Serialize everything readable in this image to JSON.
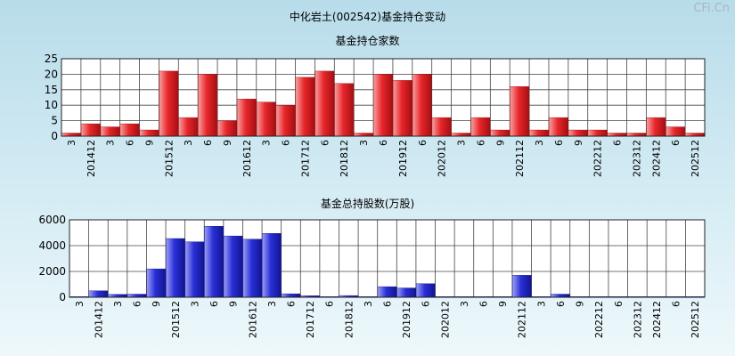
{
  "page": {
    "title": "中化岩土(002542)基金持仓变动",
    "watermark": "CFi.Cn"
  },
  "chart_data": [
    {
      "type": "bar",
      "title": "基金持仓家数",
      "color": "#e8262b",
      "ylim": [
        0,
        25
      ],
      "yticks": [
        0,
        5,
        10,
        15,
        20,
        25
      ],
      "xlabels": [
        "3",
        "201412",
        "3",
        "6",
        "9",
        "201512",
        "3",
        "6",
        "9",
        "201612",
        "3",
        "6",
        "201712",
        "6",
        "201812",
        "3",
        "6",
        "201912",
        "6",
        "202012",
        "3",
        "6",
        "9",
        "202112",
        "3",
        "6",
        "9",
        "202212",
        "6",
        "202312",
        "202412",
        "6",
        "202512"
      ],
      "values": [
        1,
        4,
        3,
        4,
        2,
        21,
        6,
        20,
        5,
        12,
        11,
        10,
        19,
        21,
        17,
        1,
        20,
        18,
        20,
        6,
        1,
        6,
        2,
        16,
        2,
        6,
        2,
        2,
        1,
        1,
        6,
        3,
        1
      ]
    },
    {
      "type": "bar",
      "title": "基金总持股数(万股)",
      "color": "#2a2fd8",
      "ylim": [
        0,
        6000
      ],
      "yticks": [
        0,
        2000,
        4000,
        6000
      ],
      "xlabels": [
        "3",
        "201412",
        "3",
        "6",
        "9",
        "201512",
        "3",
        "6",
        "9",
        "201612",
        "3",
        "6",
        "201712",
        "6",
        "201812",
        "3",
        "6",
        "201912",
        "6",
        "202012",
        "3",
        "6",
        "9",
        "202112",
        "3",
        "6",
        "9",
        "202212",
        "6",
        "202312",
        "202412",
        "6",
        "202512"
      ],
      "values": [
        30,
        500,
        220,
        240,
        2200,
        4550,
        4300,
        5500,
        4750,
        4500,
        4950,
        270,
        120,
        40,
        130,
        40,
        820,
        720,
        1050,
        40,
        40,
        40,
        40,
        1700,
        40,
        240,
        40,
        40,
        40,
        40,
        40,
        40,
        40
      ]
    }
  ]
}
